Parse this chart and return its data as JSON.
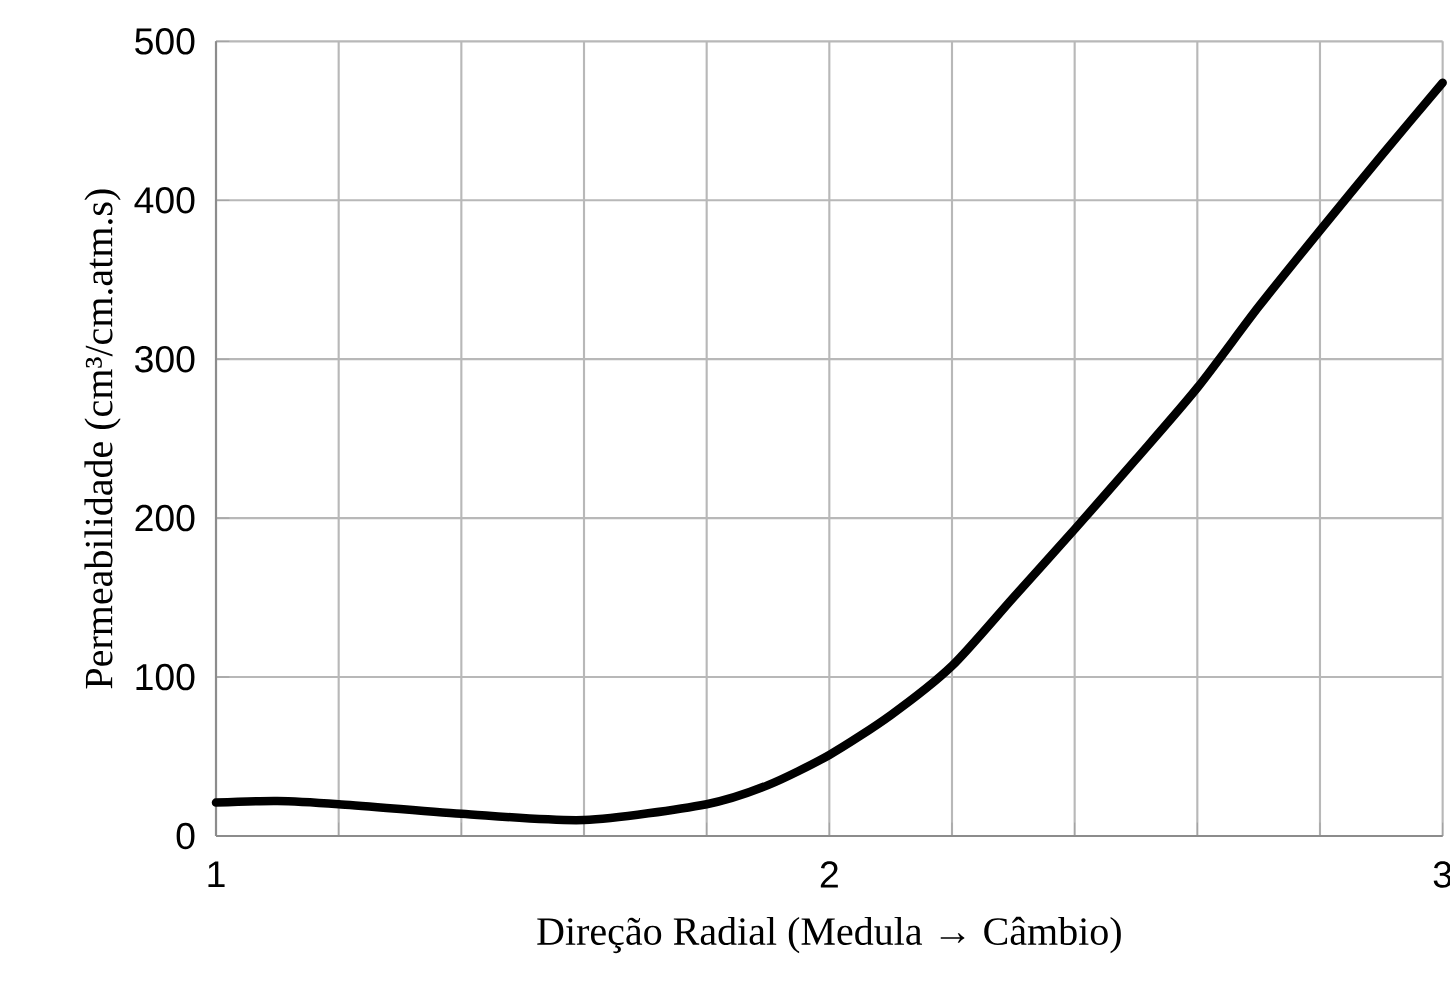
{
  "chart_data": {
    "type": "line",
    "xlabel": "Direção Radial (Medula → Câmbio)",
    "ylabel": "Permeabilidade  (cm³/cm.atm.s)",
    "series": [
      {
        "color": "#000000",
        "x": [
          1,
          1.1,
          1.2,
          1.4,
          1.6,
          1.8,
          1.9,
          2.0,
          2.1,
          2.2,
          2.3,
          2.4,
          2.5,
          2.6,
          2.7,
          2.8,
          2.9,
          3.0
        ],
        "values": [
          21,
          22,
          20,
          14,
          10,
          20,
          32,
          51,
          76,
          107,
          150,
          193,
          237,
          282,
          333,
          381,
          428,
          474
        ]
      }
    ],
    "xlim": [
      1,
      3
    ],
    "xticks": [
      1,
      {
        "value": 1.2,
        "label": null
      },
      {
        "value": 1.4,
        "label": null
      },
      {
        "value": 1.6,
        "label": null
      },
      {
        "value": 1.8,
        "label": null
      },
      2,
      {
        "value": 2.2,
        "label": null
      },
      {
        "value": 2.4,
        "label": null
      },
      {
        "value": 2.6,
        "label": null
      },
      {
        "value": 2.8,
        "label": null
      },
      3
    ],
    "ylim": [
      0,
      500
    ],
    "yticks": [
      0,
      100,
      200,
      300,
      400,
      500
    ],
    "grid": true,
    "marker": "none",
    "line_style": "solid"
  }
}
